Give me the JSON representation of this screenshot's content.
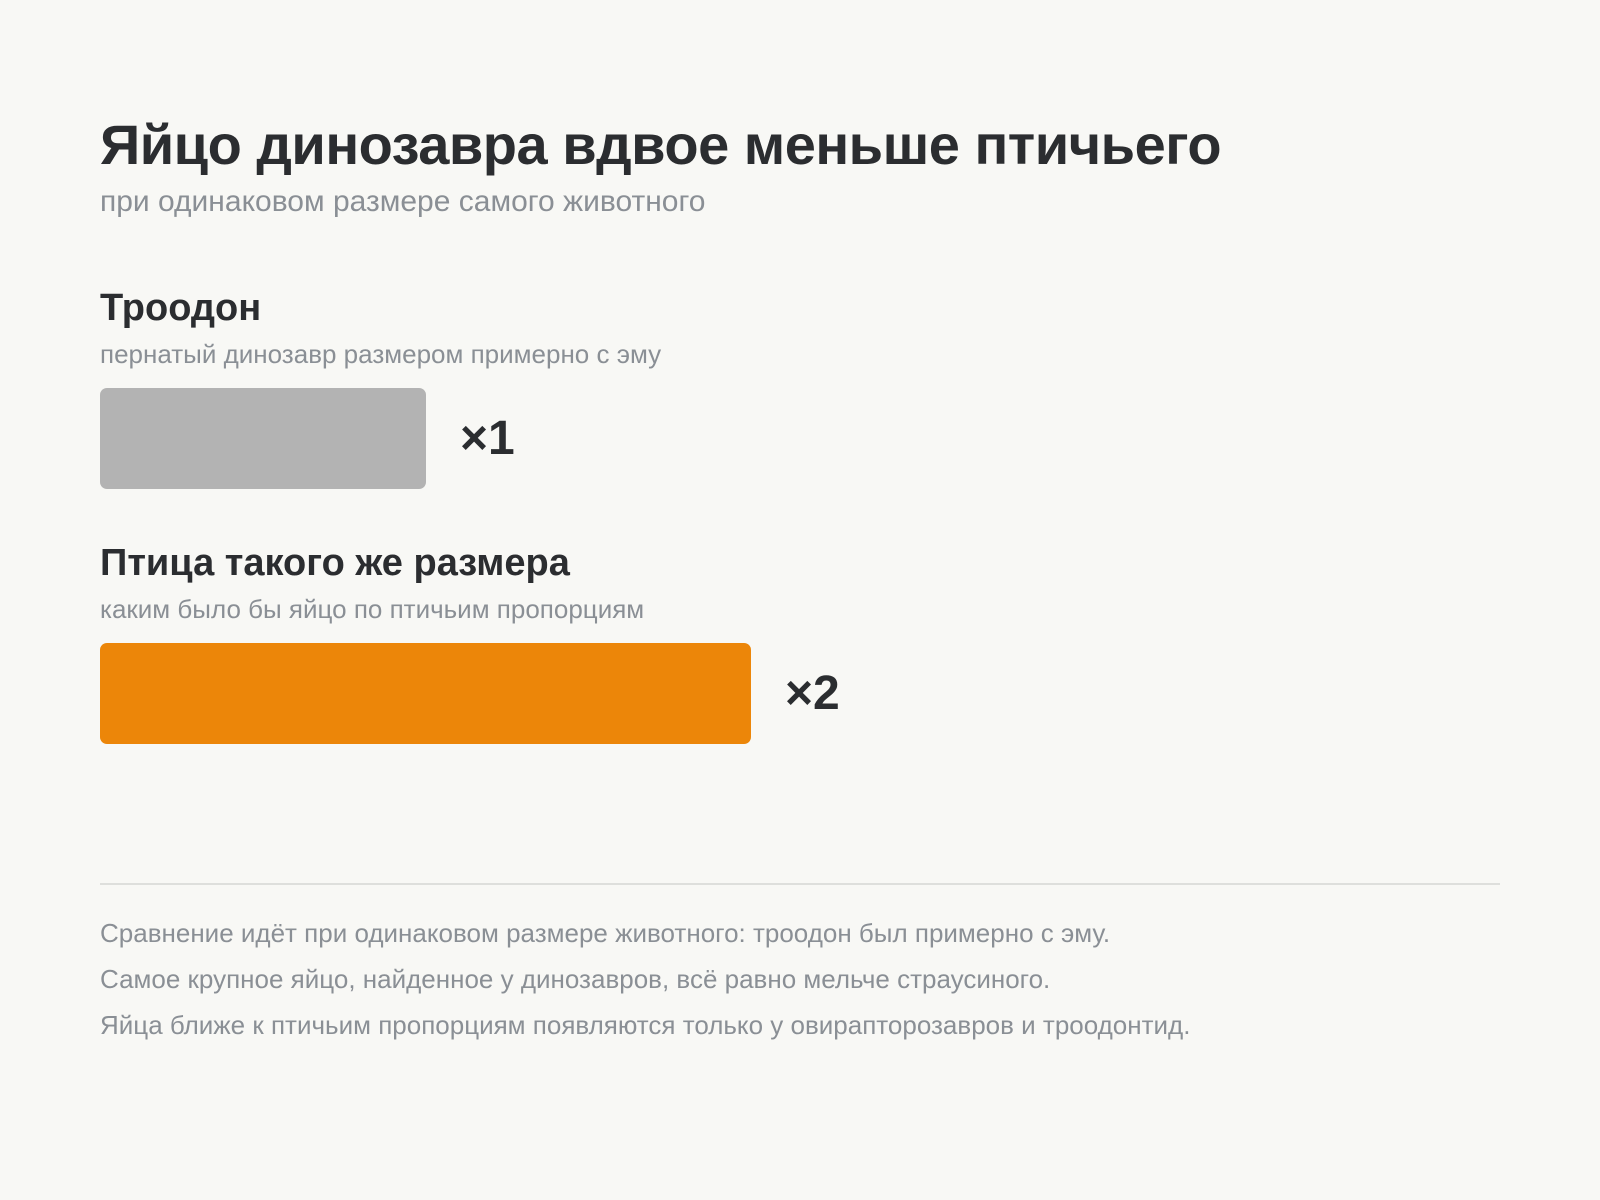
{
  "chart_data": {
    "type": "bar",
    "orientation": "horizontal",
    "title": "Яйцо динозавра вдвое меньше птичьего",
    "subtitle": "при одинаковом размере самого животного",
    "categories": [
      "Троодон",
      "Птица такого же размера"
    ],
    "descriptions": [
      "пернатый динозавр размером примерно с эму",
      "каким было бы яйцо по птичьим пропорциям"
    ],
    "values": [
      1,
      2
    ],
    "value_labels": [
      "×1",
      "×2"
    ],
    "colors": [
      "#b3b3b3",
      "#ec8609"
    ],
    "xlim": [
      0,
      4.3
    ],
    "grid": false,
    "legend": "none"
  },
  "notes": [
    "Сравнение идёт при одинаковом размере животного: троодон был примерно с эму.",
    "Самое крупное яйцо, найденное у динозавров, всё равно мельче страусиного.",
    "Яйца ближе к птичьим пропорциям появляются только у овирапторозавров и троодонтид."
  ]
}
